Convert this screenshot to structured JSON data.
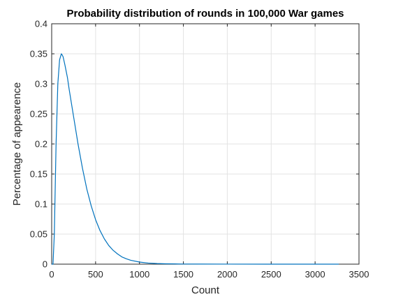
{
  "chart_data": {
    "type": "line",
    "title": "Probability distribution of rounds in 100,000 War games",
    "xlabel": "Count",
    "ylabel": "Percentage of appearence",
    "xlim": [
      0,
      3500
    ],
    "ylim": [
      0,
      0.4
    ],
    "x_ticks": [
      0,
      500,
      1000,
      1500,
      2000,
      2500,
      3000,
      3500
    ],
    "x_tick_labels": [
      "0",
      "500",
      "1000",
      "1500",
      "2000",
      "2500",
      "3000",
      "3500"
    ],
    "y_ticks": [
      0,
      0.05,
      0.1,
      0.15,
      0.2,
      0.25,
      0.3,
      0.35,
      0.4
    ],
    "y_tick_labels": [
      "0",
      "0.05",
      "0.1",
      "0.15",
      "0.2",
      "0.25",
      "0.3",
      "0.35",
      "0.4"
    ],
    "grid": true,
    "line_color": "#0072bd",
    "series": [
      {
        "x": [
          0,
          15,
          30,
          50,
          70,
          90,
          100,
          110,
          120,
          130,
          150,
          180,
          200,
          250,
          300,
          350,
          400,
          450,
          500,
          550,
          600,
          650,
          700,
          750,
          800,
          850,
          900,
          1000,
          1100,
          1200,
          1300,
          1400,
          1500,
          1700,
          2000,
          2500,
          3000,
          3270
        ],
        "y": [
          0,
          0,
          0.05,
          0.2,
          0.3,
          0.34,
          0.345,
          0.35,
          0.348,
          0.345,
          0.332,
          0.31,
          0.29,
          0.245,
          0.2,
          0.16,
          0.125,
          0.097,
          0.074,
          0.056,
          0.042,
          0.031,
          0.023,
          0.017,
          0.012,
          0.009,
          0.0065,
          0.0035,
          0.0018,
          0.001,
          0.0006,
          0.0004,
          0.0002,
          0.0001,
          5e-05,
          2e-05,
          1e-05,
          0
        ]
      }
    ]
  }
}
